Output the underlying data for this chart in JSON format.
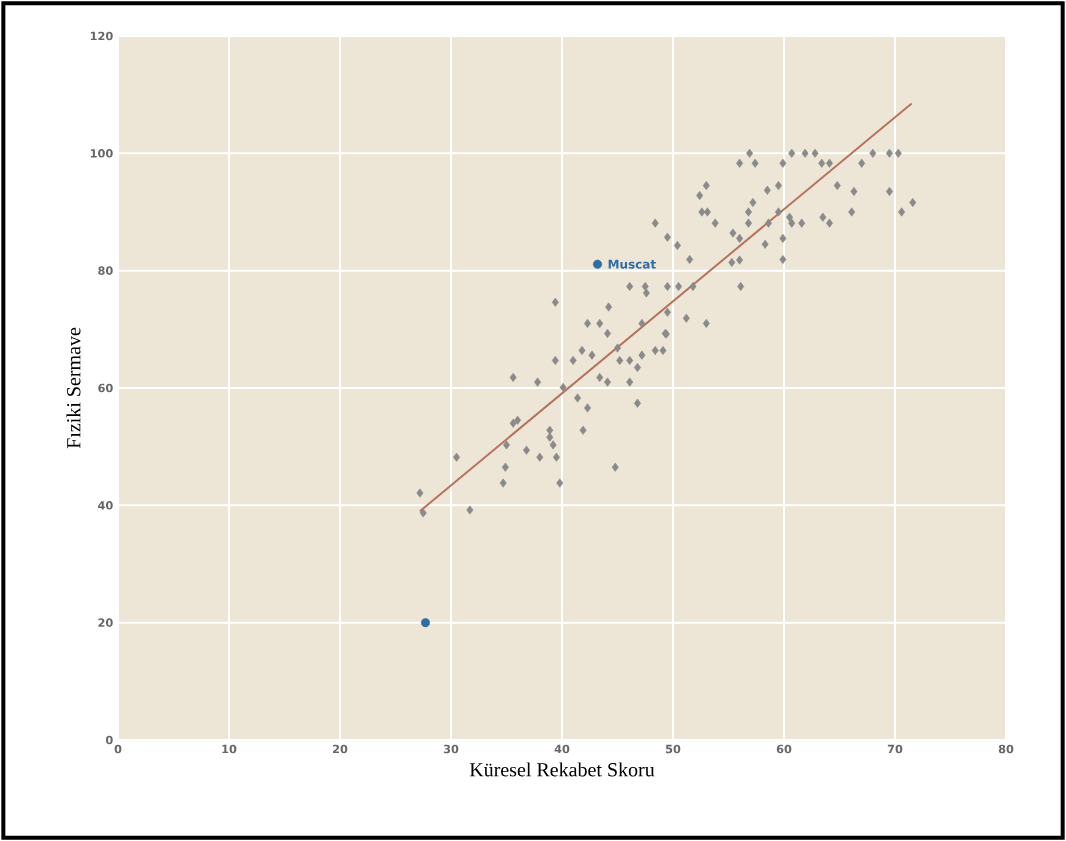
{
  "chart_data": {
    "type": "scatter",
    "xlabel": "Küresel Rekabet Skoru",
    "ylabel": "Fıziki Sermave",
    "xlim": [
      0,
      80
    ],
    "ylim": [
      0,
      120
    ],
    "xticks": [
      0,
      10,
      20,
      30,
      40,
      50,
      60,
      70,
      80
    ],
    "yticks": [
      0,
      20,
      40,
      60,
      80,
      100,
      120
    ],
    "grid": true,
    "series": [
      {
        "marker": "diamond",
        "color": "#8a8a8a",
        "x": [
          27.2,
          27.5,
          31.7,
          30.5,
          34.7,
          34.9,
          35.0,
          35.6,
          35.6,
          36.0,
          36.8,
          37.8,
          38.0,
          38.9,
          38.9,
          39.2,
          39.5,
          39.8,
          39.4,
          40.1,
          41.0,
          41.4,
          41.8,
          42.3,
          41.9,
          42.7,
          43.4,
          44.1,
          44.1,
          44.8,
          45.0,
          45.2,
          46.1,
          46.1,
          46.8,
          46.8,
          47.2,
          48.4,
          49.1,
          49.3,
          39.4,
          44.2,
          42.3,
          43.4,
          46.1,
          47.5,
          47.6,
          48.4,
          49.5,
          50.4,
          49.5,
          50.5,
          51.5,
          51.8,
          49.5,
          49.4,
          51.2,
          53.0,
          47.2,
          53.0,
          52.4,
          52.6,
          53.1,
          53.8,
          56.9,
          56.0,
          57.4,
          59.9,
          60.7,
          61.9,
          62.8,
          63.4,
          64.1,
          67.0,
          68.0,
          69.5,
          70.3,
          58.5,
          59.5,
          57.2,
          56.8,
          56.8,
          59.5,
          58.6,
          60.5,
          60.7,
          61.6,
          63.5,
          64.1,
          64.8,
          66.3,
          66.1,
          69.5,
          70.6,
          71.6,
          55.4,
          56.0,
          59.9,
          58.3,
          55.3,
          56.0,
          59.9,
          56.1
        ],
        "values": [
          42.1,
          38.7,
          39.2,
          48.2,
          43.8,
          46.5,
          50.3,
          61.8,
          54,
          54.5,
          49.4,
          61,
          48.2,
          52.8,
          51.6,
          50.3,
          48.2,
          43.8,
          64.7,
          60.1,
          64.7,
          58.3,
          66.4,
          56.6,
          52.8,
          65.6,
          61.8,
          61,
          69.3,
          46.5,
          66.8,
          64.7,
          64.7,
          61,
          63.5,
          57.4,
          65.6,
          66.4,
          66.4,
          69.3,
          74.6,
          73.8,
          71,
          71,
          77.3,
          77.3,
          76.2,
          88.1,
          85.7,
          84.3,
          77.3,
          77.3,
          81.9,
          77.3,
          72.9,
          69.2,
          71.9,
          71,
          71,
          94.5,
          92.8,
          90,
          90,
          88.1,
          100,
          98.3,
          98.3,
          98.3,
          100,
          100,
          100,
          98.3,
          98.3,
          98.3,
          100,
          100,
          100,
          93.7,
          94.5,
          91.6,
          90,
          88.1,
          90,
          88.1,
          89.1,
          88.1,
          88.1,
          89.1,
          88.1,
          94.5,
          93.5,
          90,
          93.5,
          90,
          91.6,
          86.4,
          85.5,
          85.5,
          84.5,
          81.4,
          81.8,
          81.9,
          77.3
        ]
      },
      {
        "marker": "circle",
        "color": "#2e6da4",
        "x": [
          43.2,
          27.7
        ],
        "values": [
          81.1,
          20
        ]
      },
      {
        "type": "line",
        "marker": "none",
        "color": "#b5735f",
        "x": [
          27.2,
          71.5
        ],
        "values": [
          39,
          108.5
        ]
      }
    ],
    "annotations": [
      {
        "text": "Muscat",
        "x": 43.2,
        "y": 81.1
      }
    ]
  }
}
